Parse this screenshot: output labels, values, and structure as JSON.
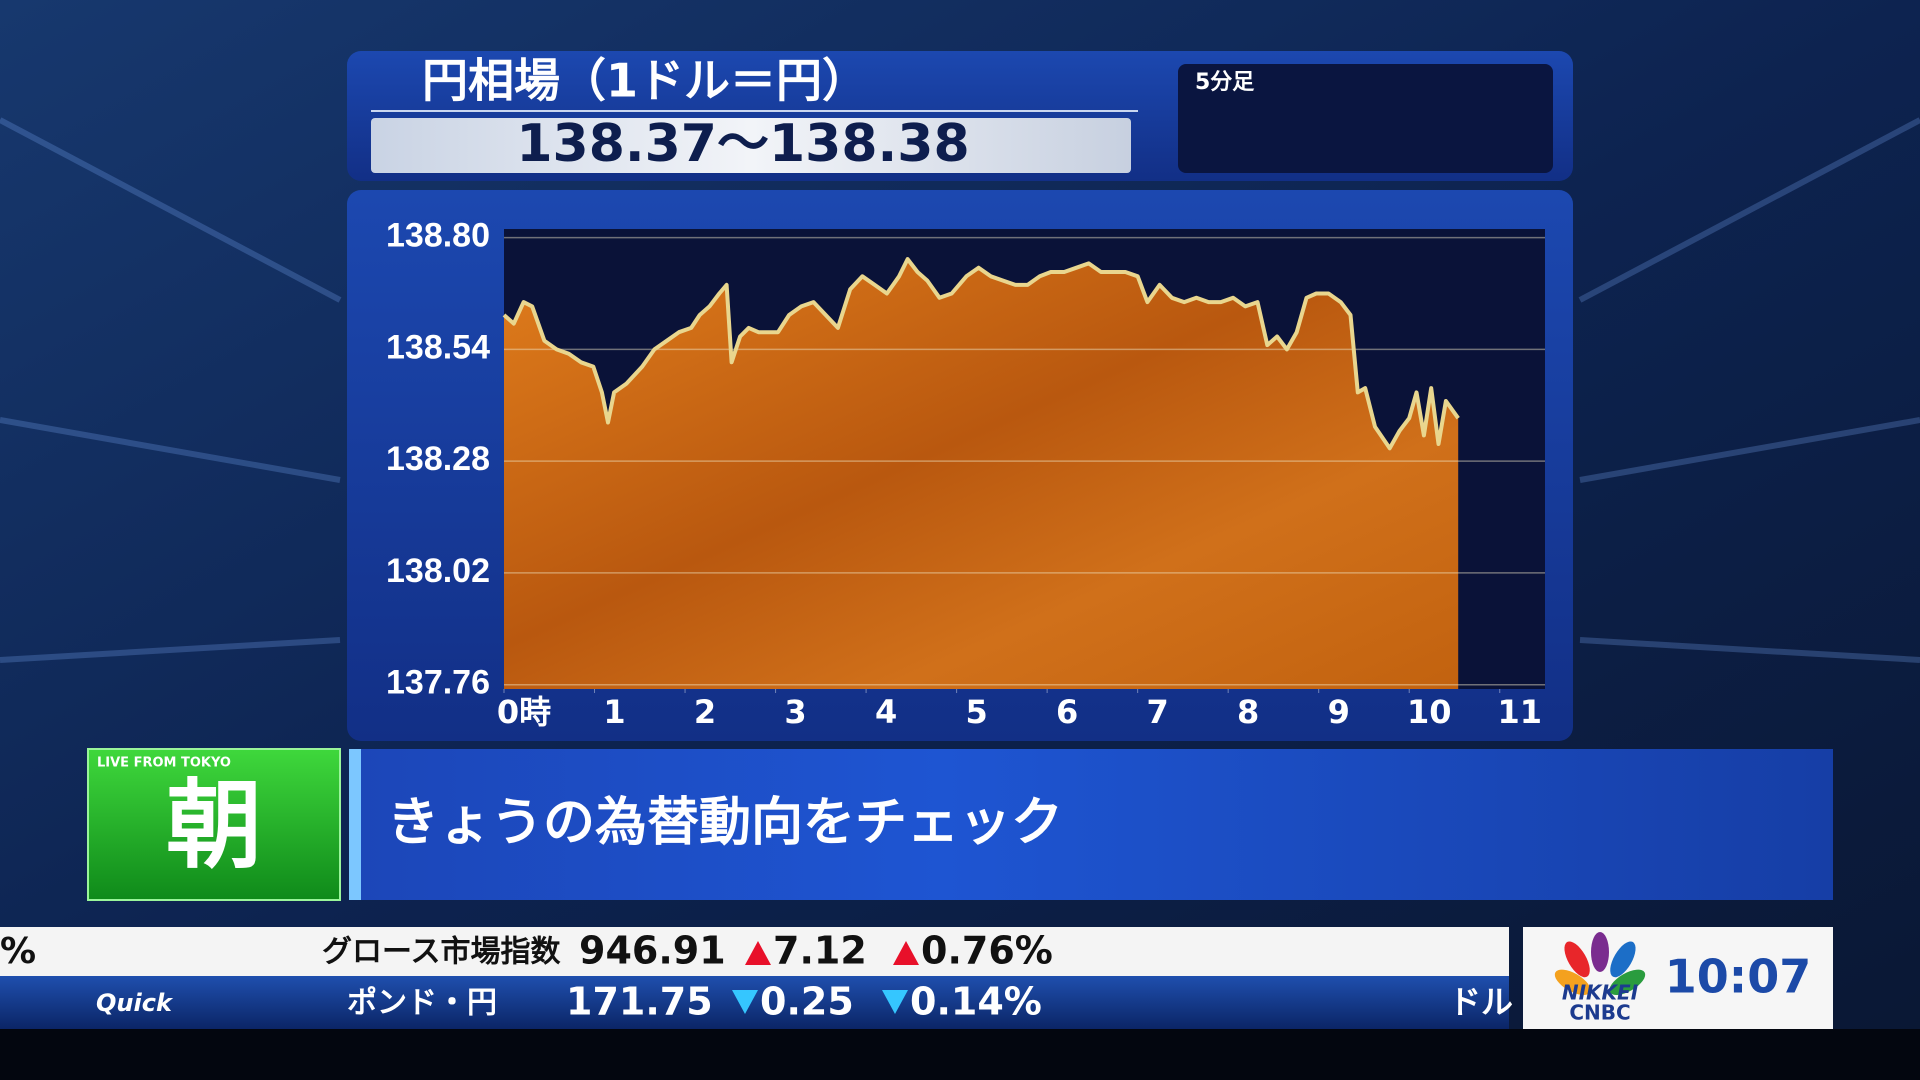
{
  "chart_data": {
    "type": "area",
    "title": "円相場（1ドル＝円）",
    "subtitle": "138.37～138.38",
    "interval": "5分足",
    "x": [
      0,
      0.108,
      0.216,
      0.311,
      0.446,
      0.581,
      0.716,
      0.851,
      0.986,
      1.081,
      1.149,
      1.216,
      1.351,
      1.527,
      1.662,
      1.797,
      1.932,
      2.068,
      2.162,
      2.27,
      2.378,
      2.459,
      2.514,
      2.608,
      2.703,
      2.811,
      2.919,
      3.027,
      3.149,
      3.284,
      3.419,
      3.554,
      3.689,
      3.824,
      3.959,
      4.095,
      4.23,
      4.365,
      4.459,
      4.568,
      4.676,
      4.811,
      4.946,
      5.108,
      5.243,
      5.378,
      5.514,
      5.649,
      5.784,
      5.919,
      6.041,
      6.189,
      6.324,
      6.459,
      6.595,
      6.73,
      6.865,
      7,
      7.108,
      7.243,
      7.378,
      7.514,
      7.649,
      7.784,
      7.919,
      8.054,
      8.189,
      8.324,
      8.432,
      8.541,
      8.649,
      8.757,
      8.865,
      8.973,
      9.108,
      9.243,
      9.351,
      9.432,
      9.514,
      9.622,
      9.784,
      9.892,
      10,
      10.081,
      10.162,
      10.243,
      10.324,
      10.405,
      10.541
    ],
    "values": [
      138.62,
      138.6,
      138.65,
      138.64,
      138.56,
      138.54,
      138.53,
      138.51,
      138.5,
      138.44,
      138.37,
      138.44,
      138.46,
      138.5,
      138.54,
      138.56,
      138.58,
      138.59,
      138.62,
      138.64,
      138.67,
      138.69,
      138.51,
      138.57,
      138.59,
      138.58,
      138.58,
      138.58,
      138.62,
      138.64,
      138.65,
      138.62,
      138.59,
      138.68,
      138.71,
      138.69,
      138.67,
      138.71,
      138.75,
      138.72,
      138.7,
      138.66,
      138.67,
      138.71,
      138.73,
      138.71,
      138.7,
      138.69,
      138.69,
      138.71,
      138.72,
      138.72,
      138.73,
      138.74,
      138.72,
      138.72,
      138.72,
      138.71,
      138.65,
      138.69,
      138.66,
      138.65,
      138.66,
      138.65,
      138.65,
      138.66,
      138.64,
      138.65,
      138.55,
      138.57,
      138.54,
      138.58,
      138.66,
      138.67,
      138.67,
      138.65,
      138.62,
      138.44,
      138.45,
      138.36,
      138.31,
      138.35,
      138.38,
      138.44,
      138.34,
      138.45,
      138.32,
      138.42,
      138.38
    ],
    "xlim": [
      0,
      11.5
    ],
    "xticks": [
      {
        "value": 0,
        "label": "0時"
      },
      1,
      2,
      3,
      4,
      5,
      6,
      7,
      8,
      9,
      10,
      11
    ],
    "ylim": [
      137.75,
      138.82
    ],
    "yticks": [
      137.76,
      138.02,
      138.28,
      138.54,
      {
        "value": 138.8,
        "label": "138.80"
      }
    ],
    "grid": true,
    "color": "#d2701a",
    "line_color": "#e9d68e"
  },
  "banner": {
    "badge_small": "LIVE FROM TOKYO",
    "badge": "朝",
    "headline": "きょうの為替動向をチェック"
  },
  "ticker": {
    "row1": {
      "cut": "%",
      "name": "グロース市場指数",
      "price": "946.91",
      "change": "7.12",
      "percent": "0.76%"
    },
    "row2": {
      "source": "Quick",
      "name": "ポンド・円",
      "price": "171.75",
      "change": "0.25",
      "percent": "0.14%",
      "cut": "ドル"
    }
  },
  "logo": {
    "brand_top": "NIKKEI",
    "brand_bottom": "CNBC",
    "time": "10:07"
  }
}
